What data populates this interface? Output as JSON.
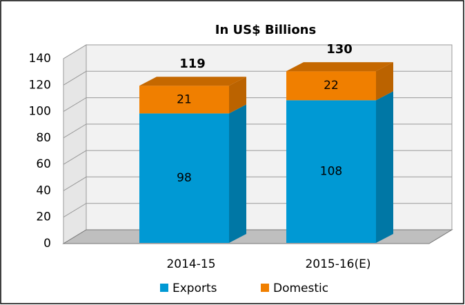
{
  "chart_data": {
    "type": "bar3d_stacked",
    "title": "In US$ Billions",
    "categories": [
      "2014-15",
      "2015-16(E)"
    ],
    "series": [
      {
        "name": "Exports",
        "color": "#0099d4",
        "values": [
          98,
          108
        ]
      },
      {
        "name": "Domestic",
        "color": "#f07f00",
        "values": [
          21,
          22
        ]
      }
    ],
    "totals": [
      119,
      130
    ],
    "ylim": [
      0,
      140
    ],
    "yticks": [
      0,
      20,
      40,
      60,
      80,
      100,
      120,
      140
    ],
    "grid": true,
    "legend": "bottom"
  }
}
